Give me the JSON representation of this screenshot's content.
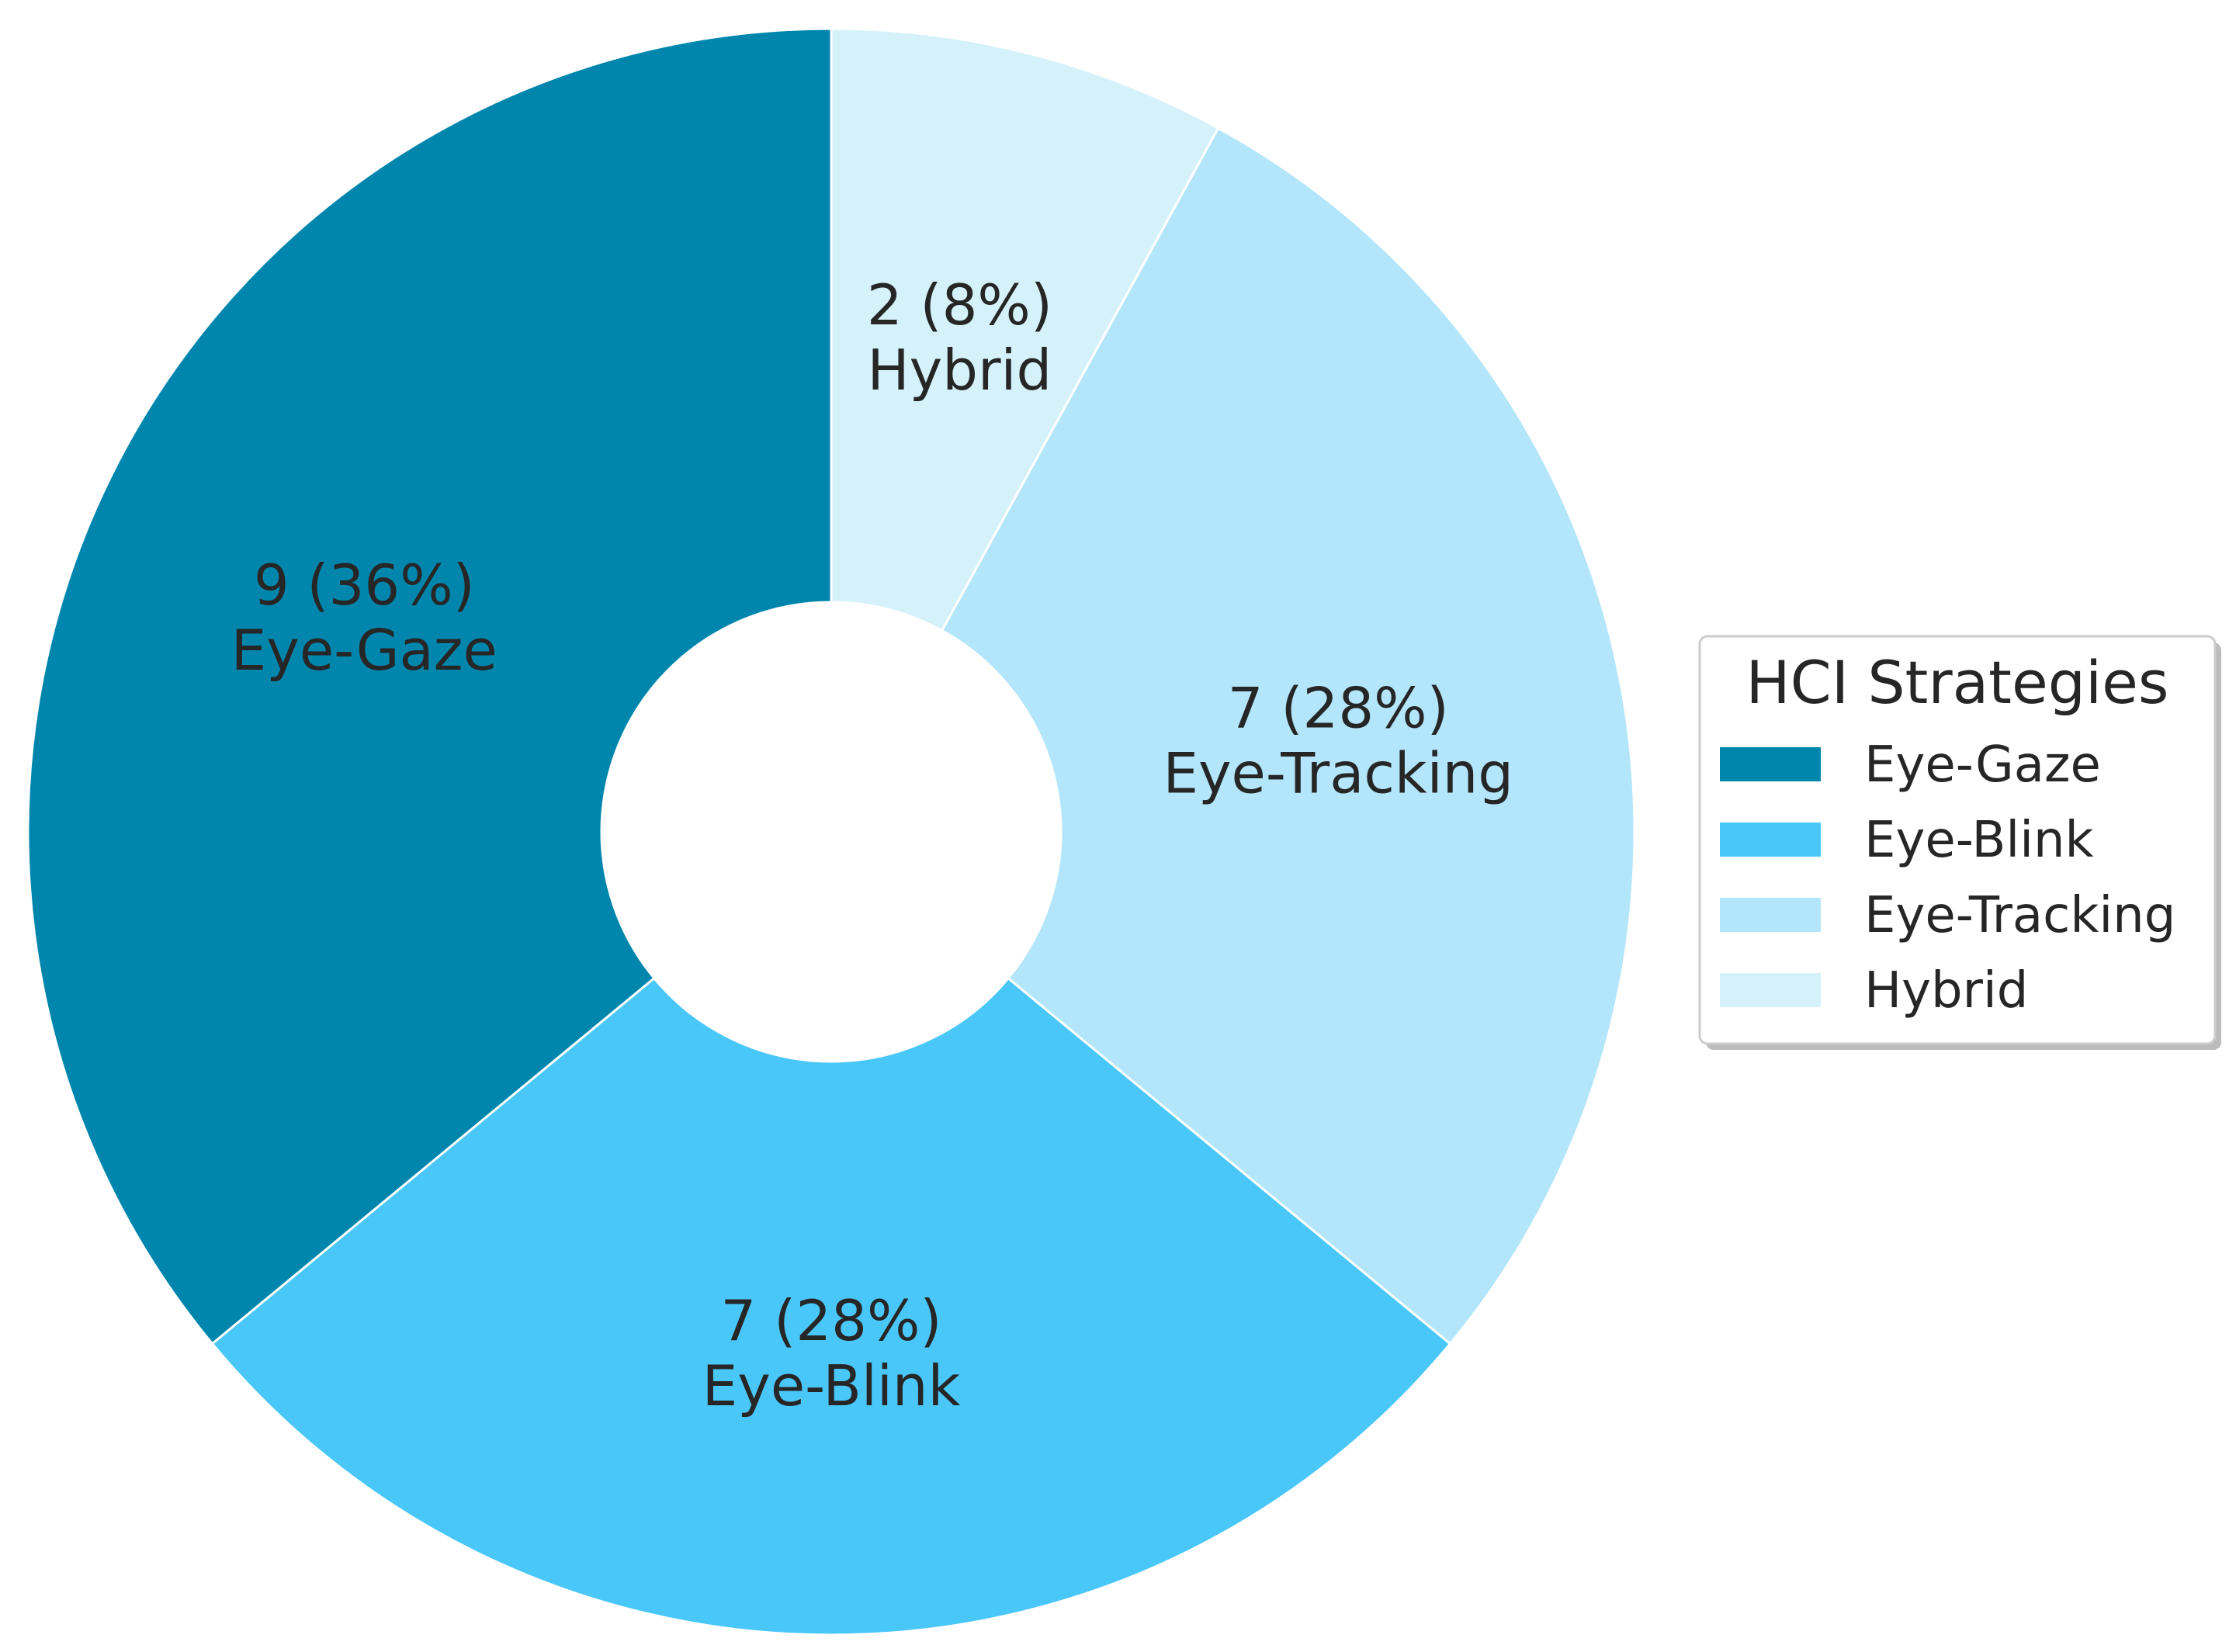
{
  "chart_data": {
    "type": "pie",
    "donut": true,
    "title": "",
    "categories": [
      "Eye-Gaze",
      "Eye-Blink",
      "Eye-Tracking",
      "Hybrid"
    ],
    "values": [
      9,
      7,
      7,
      2
    ],
    "percent_labels": [
      "36%",
      "28%",
      "28%",
      "8%"
    ],
    "slice_labels": [
      "9 (36%)",
      "7 (28%)",
      "7 (28%)",
      "2 (8%)"
    ],
    "colors": [
      "#0086ad",
      "#4ac7f9",
      "#b3e6fa",
      "#d5f2fb"
    ],
    "legend": {
      "title": "HCI Strategies",
      "placement": "right",
      "entries": [
        "Eye-Gaze",
        "Eye-Blink",
        "Eye-Tracking",
        "Hybrid"
      ]
    }
  }
}
